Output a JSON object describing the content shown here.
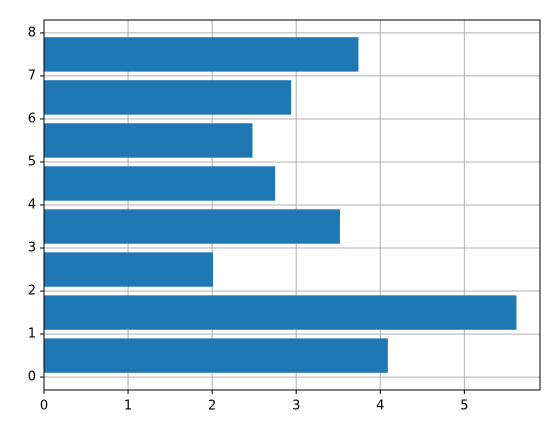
{
  "chart_data": {
    "type": "barh",
    "y": [
      0.5,
      1.5,
      2.5,
      3.5,
      4.5,
      5.5,
      6.5,
      7.5
    ],
    "values": [
      4.09,
      5.62,
      2.01,
      3.52,
      2.75,
      2.48,
      2.94,
      3.74
    ],
    "bar_height": 0.8,
    "color": "#1f77b4",
    "xlim": [
      0,
      5.9
    ],
    "xticks": [
      0,
      1,
      2,
      3,
      4,
      5
    ],
    "ylim": [
      -0.3,
      8.3
    ],
    "yticks": [
      0,
      1,
      2,
      3,
      4,
      5,
      6,
      7,
      8
    ],
    "grid": true
  }
}
